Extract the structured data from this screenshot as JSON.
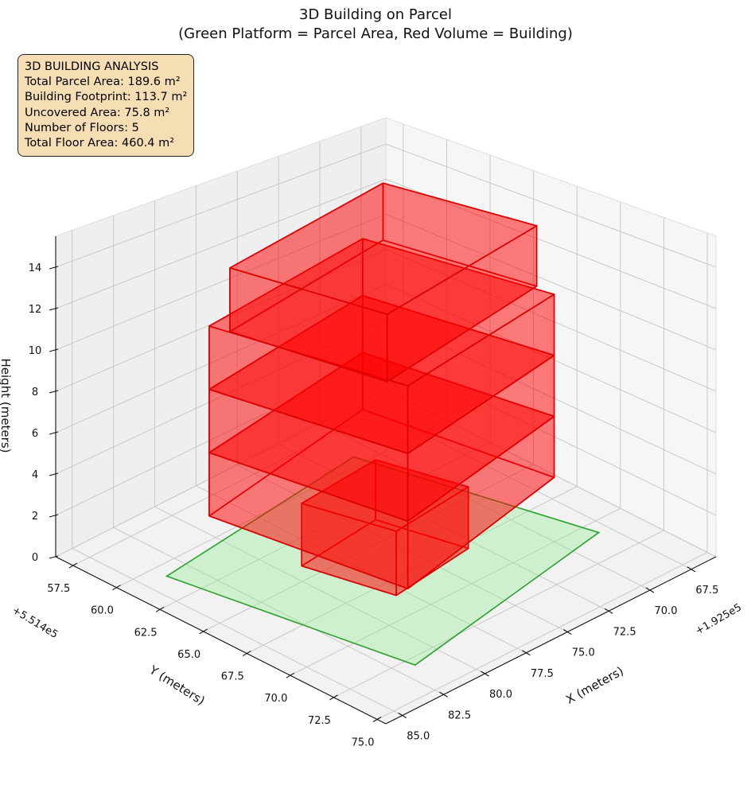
{
  "title": {
    "line1": "3D Building on Parcel",
    "line2": "(Green Platform = Parcel Area, Red Volume = Building)"
  },
  "info_box": {
    "heading": "3D BUILDING ANALYSIS",
    "lines": [
      "Total Parcel Area: 189.6 m²",
      "Building Footprint: 113.7 m²",
      "Uncovered Area: 75.8 m²",
      "Number of Floors: 5",
      "Total Floor Area: 460.4 m²"
    ]
  },
  "chart_data": {
    "type": "3d-polygon",
    "title": "3D Building on Parcel\n(Green Platform = Parcel Area, Red Volume = Building)",
    "xlabel": "X (meters)",
    "ylabel": "Y (meters)",
    "zlabel": "Height (meters)",
    "x_offset_text": "+1.925e5",
    "y_offset_text": "+5.514e5",
    "xlim": [
      66,
      86
    ],
    "ylim": [
      56.5,
      75.5
    ],
    "zlim": [
      0,
      15.5
    ],
    "x_ticks": [
      "67.5",
      "70.0",
      "72.5",
      "75.0",
      "77.5",
      "80.0",
      "82.5",
      "85.0"
    ],
    "y_ticks": [
      "57.5",
      "60.0",
      "62.5",
      "65.0",
      "67.5",
      "70.0",
      "72.5",
      "75.0"
    ],
    "z_ticks": [
      "0",
      "2",
      "4",
      "6",
      "8",
      "10",
      "12",
      "14"
    ],
    "grid": true,
    "parcel": {
      "color": "#2ca02c",
      "fill": "#90ee90",
      "z": 0,
      "polygon": [
        [
          83.8,
          60.8
        ],
        [
          71.0,
          59.4
        ],
        [
          68.1,
          70.75
        ],
        [
          81.6,
          73.0
        ]
      ]
    },
    "building": {
      "color": "#dd0000",
      "fill": "#ff0000",
      "floor_height": 3,
      "floors": [
        {
          "z": [
            0,
            3
          ],
          "footprint": [
            [
              79.1,
              64.1
            ],
            [
              74.1,
              63.6
            ],
            [
              73.0,
              67.9
            ],
            [
              78.0,
              68.5
            ]
          ]
        },
        {
          "z": [
            3,
            6
          ],
          "footprint": [
            [
              82.7,
              62.2
            ],
            [
              71.3,
              60.2
            ],
            [
              69.8,
              69.8
            ],
            [
              81.3,
              72.3
            ]
          ]
        },
        {
          "z": [
            6,
            9
          ],
          "footprint": [
            [
              82.7,
              62.2
            ],
            [
              71.3,
              60.2
            ],
            [
              69.8,
              69.8
            ],
            [
              81.3,
              72.3
            ]
          ]
        },
        {
          "z": [
            9,
            12
          ],
          "footprint": [
            [
              82.7,
              62.2
            ],
            [
              71.3,
              60.2
            ],
            [
              69.8,
              69.8
            ],
            [
              81.3,
              72.3
            ]
          ]
        },
        {
          "z": [
            12,
            15
          ],
          "footprint": [
            [
              82.5,
              63.2
            ],
            [
              70.8,
              60.9
            ],
            [
              69.7,
              68.7
            ],
            [
              81.6,
              71.4
            ]
          ]
        }
      ]
    }
  }
}
